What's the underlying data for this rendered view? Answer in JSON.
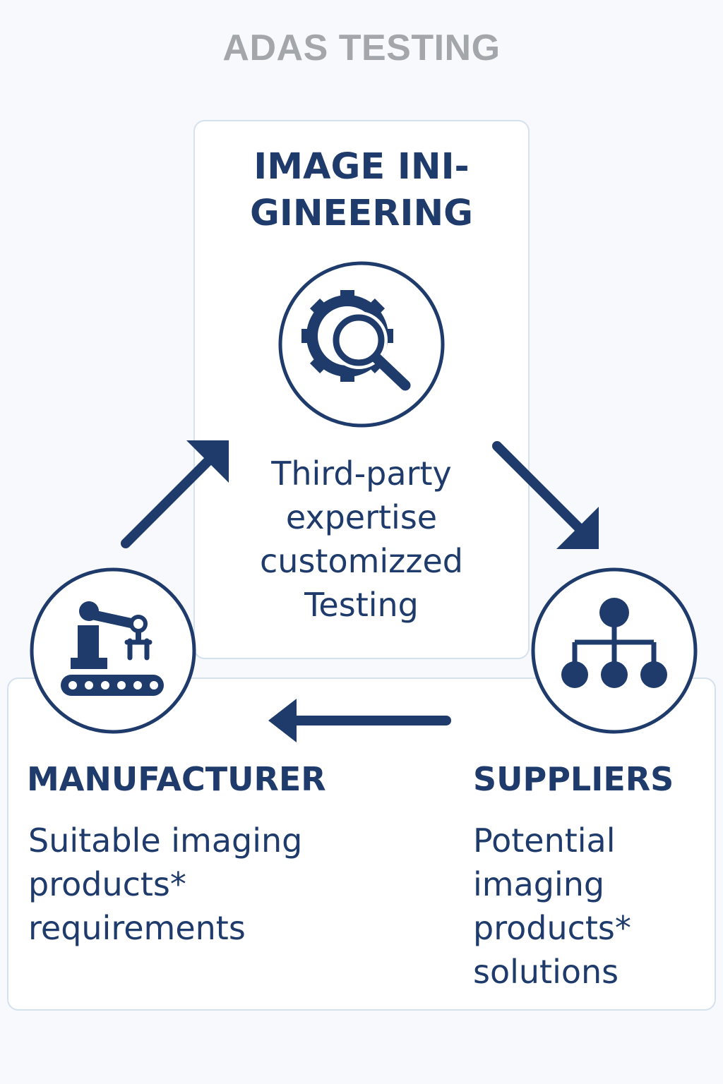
{
  "title": "ADAS TESTING",
  "colors": {
    "primary": "#1e3b6c",
    "title_gray": "#a3a6ab",
    "panel_border": "#d6e1ee",
    "background": "#f7f9fc"
  },
  "nodes": {
    "engineering": {
      "heading_lines": [
        "IMAGE INI-",
        "GINEERING"
      ],
      "description_lines": [
        "Third-party",
        "expertise",
        "customizzed",
        "Testing"
      ],
      "icon": "gear-magnifier-icon"
    },
    "manufacturer": {
      "heading": "MANUFACTURER",
      "description_lines": [
        "Suitable imaging",
        "products*",
        "requirements"
      ],
      "icon": "robot-arm-conveyor-icon"
    },
    "suppliers": {
      "heading": "SUPPLIERS",
      "description_lines": [
        "Potential",
        "imaging",
        "products*",
        "solutions"
      ],
      "icon": "hierarchy-icon"
    }
  },
  "flow": [
    {
      "from": "manufacturer",
      "to": "engineering"
    },
    {
      "from": "engineering",
      "to": "suppliers"
    },
    {
      "from": "suppliers",
      "to": "manufacturer"
    }
  ]
}
